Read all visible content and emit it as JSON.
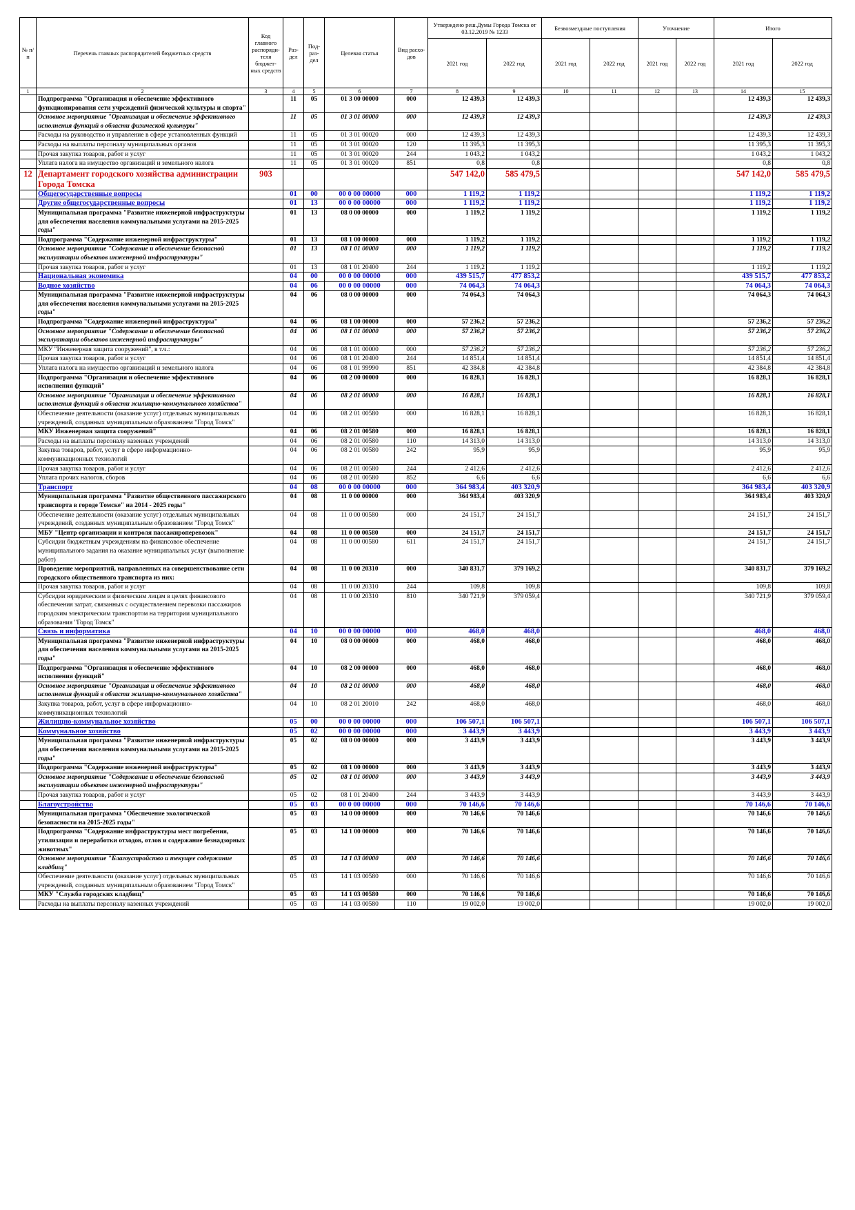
{
  "header": {
    "no": "№ п/п",
    "name": "Перечень главных распорядителей бюджетных средств",
    "code": "Код главного распоряди-теля бюджет-ных средств",
    "razdel": "Раз-дел",
    "podrazdel": "Под-раз-дел",
    "cs": "Целевая статья",
    "vr": "Вид расхо-дов",
    "groups": [
      "Утверждено реш.Думы Города Томска от 03.12.2019 № 1233",
      "Безвозмездные поступления",
      "Уточнение",
      "Итого"
    ],
    "years": [
      "2021 год",
      "2022 год",
      "2021 год",
      "2022 год",
      "2021 год",
      "2022 год",
      "2021 год",
      "2022 год"
    ],
    "numbers": [
      "1",
      "2",
      "3",
      "4",
      "5",
      "6",
      "7",
      "8",
      "9",
      "10",
      "11",
      "12",
      "13",
      "14",
      "15"
    ]
  },
  "table": {
    "rows": [
      {
        "style": "b",
        "cells": [
          null,
          "Подпрограмма \"Организация и обеспечение эффективного функционирования сети учреждений физической культуры и спорта\"",
          null,
          "11",
          "05",
          "01 3 00 00000",
          "000",
          "12 439,3",
          "12 439,3",
          "12 439,3",
          "12 439,3"
        ]
      },
      {
        "style": "bi",
        "cells": [
          null,
          "Основное мероприятие \"Организация и обеспечение эффективного исполнения функций в области физической культуры\"",
          null,
          "11",
          "05",
          "01 3 01 00000",
          "000",
          "12 439,3",
          "12 439,3",
          "12 439,3",
          "12 439,3"
        ]
      },
      {
        "style": "n",
        "cells": [
          null,
          "Расходы на руководство и управление в сфере установленных функций",
          null,
          "11",
          "05",
          "01 3 01 00020",
          "000",
          "12 439,3",
          "12 439,3",
          "12 439,3",
          "12 439,3"
        ]
      },
      {
        "style": "n",
        "cells": [
          null,
          "Расходы на выплаты персоналу муниципальных органов",
          null,
          "11",
          "05",
          "01 3 01 00020",
          "120",
          "11 395,3",
          "11 395,3",
          "11 395,3",
          "11 395,3"
        ]
      },
      {
        "style": "n",
        "cells": [
          null,
          "Прочая закупка товаров, работ и услуг",
          null,
          "11",
          "05",
          "01 3 01 00020",
          "244",
          "1 043,2",
          "1 043,2",
          "1 043,2",
          "1 043,2"
        ]
      },
      {
        "style": "n",
        "cells": [
          null,
          "Уплата налога на имущество организаций и земельного налога",
          null,
          "11",
          "05",
          "01 3 01 00020",
          "851",
          "0,8",
          "0,8",
          "0,8",
          "0,8"
        ]
      },
      {
        "style": "red",
        "cells": [
          "12",
          "Департамент городского хозяйства администрации Города Томска",
          "903",
          null,
          null,
          null,
          null,
          "547 142,0",
          "585 479,5",
          "547 142,0",
          "585 479,5"
        ]
      },
      {
        "style": "blue",
        "cells": [
          null,
          "Общегосударственные вопросы",
          null,
          "01",
          "00",
          "00 0 00 00000",
          "000",
          "1 119,2",
          "1 119,2",
          "1 119,2",
          "1 119,2"
        ]
      },
      {
        "style": "blue",
        "cells": [
          null,
          "Другие общегосударственные вопросы",
          null,
          "01",
          "13",
          "00 0 00 00000",
          "000",
          "1 119,2",
          "1 119,2",
          "1 119,2",
          "1 119,2"
        ]
      },
      {
        "style": "b",
        "cells": [
          null,
          "Муниципальная программа \"Развитие инженерной инфраструктуры для обеспечения населения коммунальными услугами на 2015-2025 годы\"",
          null,
          "01",
          "13",
          "08 0 00 00000",
          "000",
          "1 119,2",
          "1 119,2",
          "1 119,2",
          "1 119,2"
        ]
      },
      {
        "style": "b",
        "cells": [
          null,
          "Подпрограмма \"Содержание инженерной инфраструктуры\"",
          null,
          "01",
          "13",
          "08 1 00 00000",
          "000",
          "1 119,2",
          "1 119,2",
          "1 119,2",
          "1 119,2"
        ]
      },
      {
        "style": "bi",
        "cells": [
          null,
          "Основное мероприятие \"Содержание и обеспечение безопасной эксплуатации объектов инженерной инфраструктуры\"",
          null,
          "01",
          "13",
          "08 1 01 00000",
          "000",
          "1 119,2",
          "1 119,2",
          "1 119,2",
          "1 119,2"
        ]
      },
      {
        "style": "n",
        "cells": [
          null,
          "Прочая закупка товаров, работ и услуг",
          null,
          "01",
          "13",
          "08 1 01 20400",
          "244",
          "1 119,2",
          "1 119,2",
          "1 119,2",
          "1 119,2"
        ]
      },
      {
        "style": "blue",
        "cells": [
          null,
          "Национальная экономика",
          null,
          "04",
          "00",
          "00 0 00 00000",
          "000",
          "439 515,7",
          "477 853,2",
          "439 515,7",
          "477 853,2"
        ]
      },
      {
        "style": "blue",
        "cells": [
          null,
          "Водное хозяйство",
          null,
          "04",
          "06",
          "00 0 00 00000",
          "000",
          "74 064,3",
          "74 064,3",
          "74 064,3",
          "74 064,3"
        ]
      },
      {
        "style": "b",
        "cells": [
          null,
          "Муниципальная программа \"Развитие инженерной инфраструктуры для обеспечения населения коммунальными услугами на 2015-2025 годы\"",
          null,
          "04",
          "06",
          "08 0 00 00000",
          "000",
          "74 064,3",
          "74 064,3",
          "74 064,3",
          "74 064,3"
        ]
      },
      {
        "style": "b",
        "cells": [
          null,
          "Подпрограмма \"Содержание инженерной инфраструктуры\"",
          null,
          "04",
          "06",
          "08 1 00 00000",
          "000",
          "57 236,2",
          "57 236,2",
          "57 236,2",
          "57 236,2"
        ]
      },
      {
        "style": "bi",
        "cells": [
          null,
          "Основное мероприятие \"Содержание и обеспечение безопасной эксплуатации объектов инженерной инфраструктуры\"",
          null,
          "04",
          "06",
          "08 1 01 00000",
          "000",
          "57 236,2",
          "57 236,2",
          "57 236,2",
          "57 236,2"
        ]
      },
      {
        "style": "ni",
        "cells": [
          null,
          "МКУ \"Инженерная защита сооружений\", в т.ч.:",
          null,
          "04",
          "06",
          "08 1 01 00000",
          "000",
          "57 236,2",
          "57 236,2",
          "57 236,2",
          "57 236,2"
        ]
      },
      {
        "style": "n",
        "cells": [
          null,
          "Прочая закупка товаров, работ и услуг",
          null,
          "04",
          "06",
          "08 1 01 20400",
          "244",
          "14 851,4",
          "14 851,4",
          "14 851,4",
          "14 851,4"
        ]
      },
      {
        "style": "n",
        "cells": [
          null,
          "Уплата налога на имущество организаций и земельного налога",
          null,
          "04",
          "06",
          "08 1 01 99990",
          "851",
          "42 384,8",
          "42 384,8",
          "42 384,8",
          "42 384,8"
        ]
      },
      {
        "style": "b",
        "cells": [
          null,
          "Подпрограмма \"Организация и обеспечение эффективного исполнения функций\"",
          null,
          "04",
          "06",
          "08 2 00 00000",
          "000",
          "16 828,1",
          "16 828,1",
          "16 828,1",
          "16 828,1"
        ]
      },
      {
        "style": "bi",
        "cells": [
          null,
          "Основное мероприятие \"Организация и обеспечение эффективного исполнения функций в области жилищно-коммунального хозяйства\"",
          null,
          "04",
          "06",
          "08 2 01 00000",
          "000",
          "16 828,1",
          "16 828,1",
          "16 828,1",
          "16 828,1"
        ]
      },
      {
        "style": "n",
        "cells": [
          null,
          "Обеспечение деятельности (оказание услуг) отдельных муниципальных учреждений, созданных муниципальным образованием \"Город Томск\"",
          null,
          "04",
          "06",
          "08 2 01 00580",
          "000",
          "16 828,1",
          "16 828,1",
          "16 828,1",
          "16 828,1"
        ]
      },
      {
        "style": "b",
        "cells": [
          null,
          "МКУ Инженерная защита сооружений\"",
          null,
          "04",
          "06",
          "08 2 01 00580",
          "000",
          "16 828,1",
          "16 828,1",
          "16 828,1",
          "16 828,1"
        ]
      },
      {
        "style": "n",
        "cells": [
          null,
          "Расходы на выплаты персоналу казенных учреждений",
          null,
          "04",
          "06",
          "08 2 01 00580",
          "110",
          "14 313,0",
          "14 313,0",
          "14 313,0",
          "14 313,0"
        ]
      },
      {
        "style": "n",
        "cells": [
          null,
          "Закупка товаров, работ, услуг в сфере информационно-коммуникационных технологий",
          null,
          "04",
          "06",
          "08 2 01 00580",
          "242",
          "95,9",
          "95,9",
          "95,9",
          "95,9"
        ]
      },
      {
        "style": "n",
        "cells": [
          null,
          "Прочая закупка товаров, работ и услуг",
          null,
          "04",
          "06",
          "08 2 01 00580",
          "244",
          "2 412,6",
          "2 412,6",
          "2 412,6",
          "2 412,6"
        ]
      },
      {
        "style": "n",
        "cells": [
          null,
          "Уплата прочих налогов, сборов",
          null,
          "04",
          "06",
          "08 2 01 00580",
          "852",
          "6,6",
          "6,6",
          "6,6",
          "6,6"
        ]
      },
      {
        "style": "blue",
        "cells": [
          null,
          "Транспорт",
          null,
          "04",
          "08",
          "00 0 00 00000",
          "000",
          "364 983,4",
          "403 320,9",
          "364 983,4",
          "403 320,9"
        ]
      },
      {
        "style": "b",
        "cells": [
          null,
          "Муниципальная программа \"Развитие общественного пассажирского транспорта в городе Томске\" на 2014 - 2025 годы\"",
          null,
          "04",
          "08",
          "11 0 00 00000",
          "000",
          "364 983,4",
          "403 320,9",
          "364 983,4",
          "403 320,9"
        ]
      },
      {
        "style": "n",
        "cells": [
          null,
          "Обеспечение деятельности (оказание услуг) отдельных муниципальных учреждений, созданных муниципальным образованием \"Город Томск\"",
          null,
          "04",
          "08",
          "11 0 00 00580",
          "000",
          "24 151,7",
          "24 151,7",
          "24 151,7",
          "24 151,7"
        ]
      },
      {
        "style": "b",
        "cells": [
          null,
          "МБУ \"Центр организации и контроля пассажироперевозок\"",
          null,
          "04",
          "08",
          "11 0 00 00580",
          "000",
          "24 151,7",
          "24 151,7",
          "24 151,7",
          "24 151,7"
        ]
      },
      {
        "style": "n",
        "cells": [
          null,
          "Субсидии бюджетным учреждениям на финансовое обеспечение муниципального задания на оказание муниципальных услуг (выполнение работ)",
          null,
          "04",
          "08",
          "11 0 00 00580",
          "611",
          "24 151,7",
          "24 151,7",
          "24 151,7",
          "24 151,7"
        ]
      },
      {
        "style": "b",
        "cells": [
          null,
          "Проведение мероприятий, направленных на совершенствование сети городского общественного транспорта из них:",
          null,
          "04",
          "08",
          "11 0 00 20310",
          "000",
          "340 831,7",
          "379 169,2",
          "340 831,7",
          "379 169,2"
        ]
      },
      {
        "style": "n",
        "cells": [
          null,
          "Прочая закупка товаров, работ и услуг",
          null,
          "04",
          "08",
          "11 0 00 20310",
          "244",
          "109,8",
          "109,8",
          "109,8",
          "109,8"
        ]
      },
      {
        "style": "n",
        "cells": [
          null,
          "Субсидии юридическим и физическим лицам в целях финансового обеспечения затрат, связанных с осуществлением перевозки пассажиров городским электрическим транспортом на территории муниципального образования \"Город Томск\"",
          null,
          "04",
          "08",
          "11 0 00 20310",
          "810",
          "340 721,9",
          "379 059,4",
          "340 721,9",
          "379 059,4"
        ]
      },
      {
        "style": "blue",
        "cells": [
          null,
          "Связь и информатика",
          null,
          "04",
          "10",
          "00 0 00 00000",
          "000",
          "468,0",
          "468,0",
          "468,0",
          "468,0"
        ]
      },
      {
        "style": "b",
        "cells": [
          null,
          "Муниципальная программа \"Развитие инженерной инфраструктуры для обеспечения населения коммунальными услугами на 2015-2025 годы\"",
          null,
          "04",
          "10",
          "08 0 00 00000",
          "000",
          "468,0",
          "468,0",
          "468,0",
          "468,0"
        ]
      },
      {
        "style": "b",
        "cells": [
          null,
          "Подпрограмма \"Организация и обеспечение эффективного исполнения функций\"",
          null,
          "04",
          "10",
          "08 2 00 00000",
          "000",
          "468,0",
          "468,0",
          "468,0",
          "468,0"
        ]
      },
      {
        "style": "bi",
        "cells": [
          null,
          "Основное мероприятие \"Организация и обеспечение эффективного исполнения функций в области жилищно-коммунального хозяйства\"",
          null,
          "04",
          "10",
          "08 2 01 00000",
          "000",
          "468,0",
          "468,0",
          "468,0",
          "468,0"
        ]
      },
      {
        "style": "n",
        "cells": [
          null,
          "Закупка товаров, работ, услуг в сфере информационно-коммуникационных технологий",
          null,
          "04",
          "10",
          "08 2 01 20010",
          "242",
          "468,0",
          "468,0",
          "468,0",
          "468,0"
        ]
      },
      {
        "style": "blue",
        "cells": [
          null,
          "Жилищно-коммунальное хозяйство",
          null,
          "05",
          "00",
          "00 0 00 00000",
          "000",
          "106 507,1",
          "106 507,1",
          "106 507,1",
          "106 507,1"
        ]
      },
      {
        "style": "blue",
        "cells": [
          null,
          "Коммунальное хозяйство",
          null,
          "05",
          "02",
          "00 0 00 00000",
          "000",
          "3 443,9",
          "3 443,9",
          "3 443,9",
          "3 443,9"
        ]
      },
      {
        "style": "b",
        "cells": [
          null,
          "Муниципальная программа \"Развитие инженерной инфраструктуры для обеспечения населения коммунальными услугами на 2015-2025 годы\"",
          null,
          "05",
          "02",
          "08 0 00 00000",
          "000",
          "3 443,9",
          "3 443,9",
          "3 443,9",
          "3 443,9"
        ]
      },
      {
        "style": "b",
        "cells": [
          null,
          "Подпрограмма \"Содержание инженерной инфраструктуры\"",
          null,
          "05",
          "02",
          "08 1 00 00000",
          "000",
          "3 443,9",
          "3 443,9",
          "3 443,9",
          "3 443,9"
        ]
      },
      {
        "style": "bi",
        "cells": [
          null,
          "Основное мероприятие \"Содержание и обеспечение безопасной эксплуатации объектов инженерной инфраструктуры\"",
          null,
          "05",
          "02",
          "08 1 01 00000",
          "000",
          "3 443,9",
          "3 443,9",
          "3 443,9",
          "3 443,9"
        ]
      },
      {
        "style": "n",
        "cells": [
          null,
          "Прочая закупка товаров, работ и услуг",
          null,
          "05",
          "02",
          "08 1 01 20400",
          "244",
          "3 443,9",
          "3 443,9",
          "3 443,9",
          "3 443,9"
        ]
      },
      {
        "style": "blue",
        "cells": [
          null,
          "Благоустройство",
          null,
          "05",
          "03",
          "00 0 00 00000",
          "000",
          "70 146,6",
          "70 146,6",
          "70 146,6",
          "70 146,6"
        ]
      },
      {
        "style": "b",
        "cells": [
          null,
          "Муниципальная программа \"Обеспечение экологической безопасности на 2015-2025 годы\"",
          null,
          "05",
          "03",
          "14 0 00 00000",
          "000",
          "70 146,6",
          "70 146,6",
          "70 146,6",
          "70 146,6"
        ]
      },
      {
        "style": "b",
        "cells": [
          null,
          "Подпрограмма \"Содержание инфраструктуры мест погребения, утилизации и переработки отходов, отлов и содержание безнадзорных животных\"",
          null,
          "05",
          "03",
          "14 1 00 00000",
          "000",
          "70 146,6",
          "70 146,6",
          "70 146,6",
          "70 146,6"
        ]
      },
      {
        "style": "bi",
        "cells": [
          null,
          "Основное мероприятие \"Благоустройство и текущее содержание кладбищ\"",
          null,
          "05",
          "03",
          "14 1 03 00000",
          "000",
          "70 146,6",
          "70 146,6",
          "70 146,6",
          "70 146,6"
        ]
      },
      {
        "style": "n",
        "cells": [
          null,
          "Обеспечение деятельности (оказание услуг) отдельных муниципальных учреждений, созданных муниципальным образованием \"Город Томск\"",
          null,
          "05",
          "03",
          "14 1 03 00580",
          "000",
          "70 146,6",
          "70 146,6",
          "70 146,6",
          "70 146,6"
        ]
      },
      {
        "style": "b",
        "cells": [
          null,
          "МКУ \"Служба городских кладбищ\"",
          null,
          "05",
          "03",
          "14 1 03 00580",
          "000",
          "70 146,6",
          "70 146,6",
          "70 146,6",
          "70 146,6"
        ]
      },
      {
        "style": "n",
        "cells": [
          null,
          "Расходы на выплаты персоналу казенных учреждений",
          null,
          "05",
          "03",
          "14 1 03 00580",
          "110",
          "19 002,0",
          "19 002,0",
          "19 002,0",
          "19 002,0"
        ]
      }
    ]
  }
}
